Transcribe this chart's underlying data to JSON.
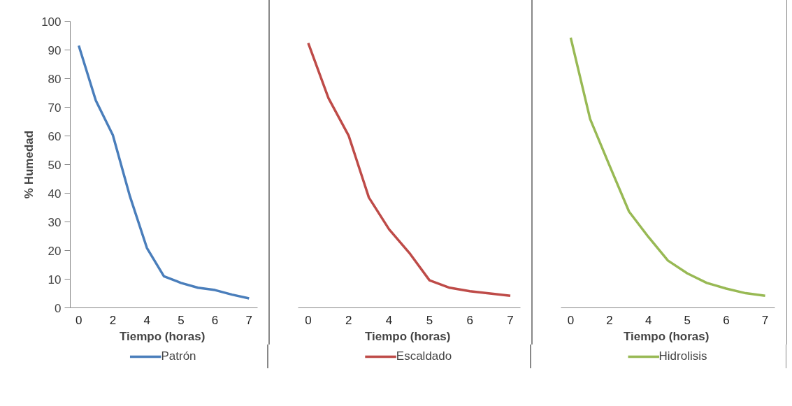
{
  "chart_data": [
    {
      "type": "line",
      "xlabel": "Tiempo  (horas)",
      "ylabel": "% Humedad",
      "categories": [
        "0",
        null,
        "2",
        null,
        "4",
        null,
        "5",
        null,
        "6",
        null,
        "7"
      ],
      "ylim": [
        0,
        100
      ],
      "yticks": [
        0,
        10,
        20,
        30,
        40,
        50,
        60,
        70,
        80,
        90,
        100
      ],
      "grid": false,
      "legend": "bottom",
      "line_style": "solid",
      "series": [
        {
          "name": "Patrón",
          "color": "#4a7ebb",
          "values": [
            91.5,
            72.4,
            60.3,
            39,
            20.9,
            11,
            8.7,
            7,
            6.2,
            4.6,
            3.3
          ]
        }
      ]
    },
    {
      "type": "line",
      "xlabel": "Tiempo  (horas)",
      "categories": [
        "0",
        null,
        "2",
        null,
        "4",
        null,
        "5",
        null,
        "6",
        null,
        "7"
      ],
      "ylim": [
        0,
        100
      ],
      "tick_labels": "x",
      "grid": false,
      "legend": "bottom",
      "line_style": "solid",
      "series": [
        {
          "name": "Escaldado",
          "color": "#be4b48",
          "values": [
            92.4,
            73.2,
            60.1,
            38.5,
            27.4,
            19.2,
            9.6,
            7,
            5.8,
            5,
            4.2
          ]
        }
      ]
    },
    {
      "type": "line",
      "xlabel": "Tiempo  (horas)",
      "categories": [
        "0",
        null,
        "2",
        null,
        "4",
        null,
        "5",
        null,
        "6",
        null,
        "7"
      ],
      "ylim": [
        0,
        100
      ],
      "tick_labels": "x",
      "grid": false,
      "legend": "bottom",
      "line_style": "solid",
      "series": [
        {
          "name": "Hidrolisis",
          "color": "#98b954",
          "values": [
            94.3,
            65.9,
            49.6,
            33.6,
            24.7,
            16.5,
            12,
            8.7,
            6.7,
            5.1,
            4.2
          ]
        }
      ]
    }
  ]
}
